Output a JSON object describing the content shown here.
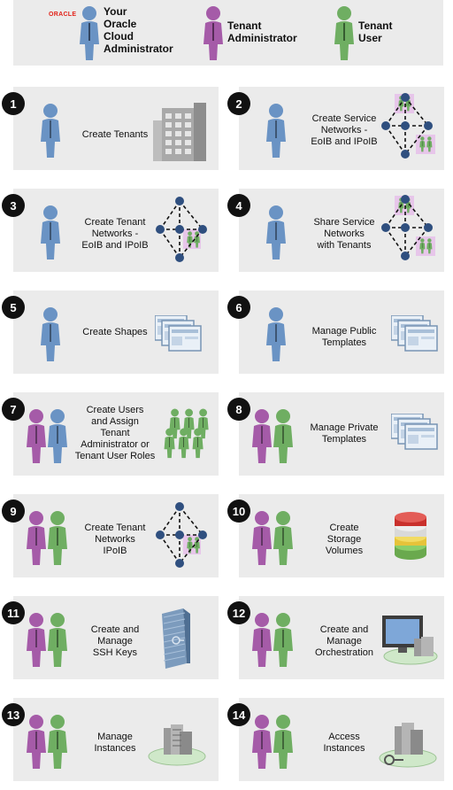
{
  "legend": {
    "logo": "ORACLE",
    "roles": [
      {
        "label": "Your\nOracle\nCloud\nAdministrator",
        "color": "blue"
      },
      {
        "label": "Tenant\nAdministrator",
        "color": "purple"
      },
      {
        "label": "Tenant\nUser",
        "color": "green"
      }
    ]
  },
  "colors": {
    "blue": "#6a93c4",
    "purple": "#a55ba8",
    "green": "#6fae62",
    "card_bg": "#ebebeb"
  },
  "steps": [
    {
      "num": "1",
      "text": "Create Tenants",
      "actors": [
        "blue"
      ],
      "icon": "building-icon"
    },
    {
      "num": "2",
      "text": "Create Service\nNetworks -\nEoIB and IPoIB",
      "actors": [
        "blue"
      ],
      "icon": "service-network-icon"
    },
    {
      "num": "3",
      "text": "Create Tenant\nNetworks -\nEoIB and IPoIB",
      "actors": [
        "blue"
      ],
      "icon": "tenant-network-icon"
    },
    {
      "num": "4",
      "text": "Share Service\nNetworks\nwith Tenants",
      "actors": [
        "blue"
      ],
      "icon": "service-network-icon"
    },
    {
      "num": "5",
      "text": "Create Shapes",
      "actors": [
        "blue"
      ],
      "icon": "templates-icon"
    },
    {
      "num": "6",
      "text": "Manage Public\nTemplates",
      "actors": [
        "blue"
      ],
      "icon": "templates-icon"
    },
    {
      "num": "7",
      "text": "Create Users\nand Assign\nTenant\nAdministrator or\nTenant User Roles",
      "actors": [
        "purple",
        "blue"
      ],
      "icon": "user-group-icon"
    },
    {
      "num": "8",
      "text": "Manage Private\nTemplates",
      "actors": [
        "purple",
        "green"
      ],
      "icon": "templates-icon"
    },
    {
      "num": "9",
      "text": "Create Tenant\nNetworks\nIPoIB",
      "actors": [
        "purple",
        "green"
      ],
      "icon": "tenant-network-icon"
    },
    {
      "num": "10",
      "text": "Create\nStorage\nVolumes",
      "actors": [
        "purple",
        "green"
      ],
      "icon": "storage-icon"
    },
    {
      "num": "11",
      "text": "Create and\nManage\nSSH Keys",
      "actors": [
        "purple",
        "green"
      ],
      "icon": "key-tower-icon"
    },
    {
      "num": "12",
      "text": "Create and\nManage\nOrchestration",
      "actors": [
        "purple",
        "green"
      ],
      "icon": "monitor-cloud-icon"
    },
    {
      "num": "13",
      "text": "Manage\nInstances",
      "actors": [
        "purple",
        "green"
      ],
      "icon": "server-cloud-icon"
    },
    {
      "num": "14",
      "text": "Access\nInstances",
      "actors": [
        "purple",
        "green"
      ],
      "icon": "server-key-icon"
    }
  ]
}
